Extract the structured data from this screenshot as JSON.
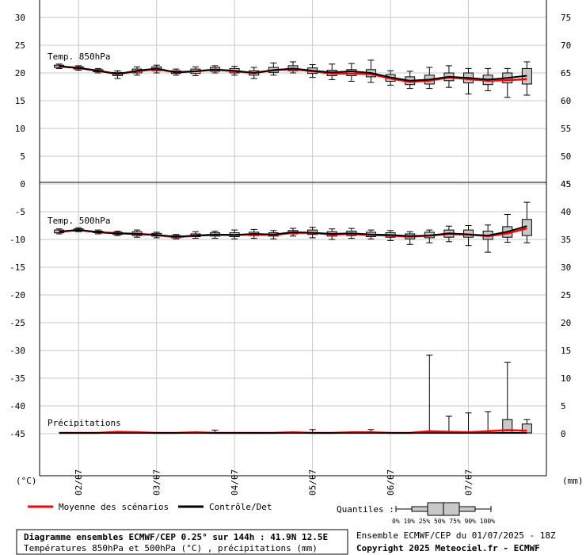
{
  "chart_data": {
    "type": "line",
    "x_dates": [
      "02/07",
      "03/07",
      "04/07",
      "05/07",
      "06/07",
      "07/07"
    ],
    "x_unit_left": "(°C)",
    "x_unit_right": "(mm)",
    "panels": {
      "t850": {
        "label": "Temp. 850hPa",
        "y_left_ticks": [
          "30",
          "25",
          "20",
          "15",
          "10",
          "5",
          "0"
        ],
        "y_right_ticks": [
          "75",
          "70",
          "65",
          "60",
          "55",
          "50",
          "45"
        ],
        "ylim": [
          0,
          33
        ],
        "steps_hours": [
          0,
          6,
          12,
          18,
          24,
          30,
          36,
          42,
          48,
          54,
          60,
          66,
          72,
          78,
          84,
          90,
          96,
          102,
          108,
          114,
          120,
          126,
          132,
          138,
          144
        ],
        "control": [
          21.2,
          20.9,
          20.4,
          19.8,
          20.4,
          20.8,
          20.1,
          20.3,
          20.6,
          20.4,
          20.0,
          20.5,
          20.8,
          20.4,
          20.1,
          20.3,
          20.0,
          19.2,
          18.6,
          18.8,
          19.3,
          19.1,
          18.8,
          19.1,
          19.5
        ],
        "mean": [
          21.2,
          20.9,
          20.4,
          19.8,
          20.3,
          20.7,
          20.1,
          20.3,
          20.6,
          20.3,
          20.0,
          20.5,
          20.7,
          20.3,
          19.9,
          19.9,
          19.8,
          19.0,
          18.4,
          18.6,
          19.2,
          18.9,
          18.6,
          18.7,
          18.9
        ],
        "whisk_lo": [
          20.8,
          20.5,
          20.0,
          19.0,
          19.6,
          20.0,
          19.6,
          19.5,
          20.0,
          19.6,
          19.0,
          19.6,
          20.0,
          19.2,
          18.8,
          18.5,
          18.3,
          17.8,
          17.2,
          17.2,
          17.4,
          16.2,
          16.8,
          15.6,
          16.0
        ],
        "q25": [
          21.0,
          20.7,
          20.2,
          19.5,
          20.0,
          20.4,
          19.9,
          19.9,
          20.3,
          20.0,
          19.6,
          20.1,
          20.4,
          19.9,
          19.5,
          19.5,
          19.3,
          18.5,
          17.9,
          18.0,
          18.6,
          18.2,
          17.9,
          18.2,
          18.0
        ],
        "q75": [
          21.4,
          21.1,
          20.6,
          20.1,
          20.7,
          21.1,
          20.4,
          20.7,
          21.0,
          20.8,
          20.4,
          21.0,
          21.3,
          20.9,
          20.5,
          20.6,
          20.6,
          19.7,
          19.3,
          19.6,
          20.0,
          20.0,
          19.6,
          20.0,
          20.8
        ],
        "whisk_hi": [
          21.6,
          21.3,
          20.8,
          20.4,
          21.1,
          21.4,
          20.7,
          21.1,
          21.3,
          21.2,
          21.0,
          21.8,
          22.0,
          21.5,
          21.6,
          21.7,
          22.3,
          20.4,
          20.3,
          21.0,
          21.3,
          20.8,
          20.8,
          20.8,
          22.0
        ]
      },
      "t500": {
        "label": "Temp. 500hPa",
        "y_left_ticks": [
          "-5",
          "-10",
          "-15",
          "-20",
          "-25",
          "-30",
          "-35",
          "-40",
          "-45"
        ],
        "y_right_ticks": [
          "45",
          "40",
          "35",
          "30",
          "25",
          "20",
          "15",
          "10",
          "5",
          "0"
        ],
        "steps_hours": [
          0,
          6,
          12,
          18,
          24,
          30,
          36,
          42,
          48,
          54,
          60,
          66,
          72,
          78,
          84,
          90,
          96,
          102,
          108,
          114,
          120,
          126,
          132,
          138,
          144
        ],
        "control": [
          -8.6,
          -8.3,
          -8.7,
          -8.9,
          -9.0,
          -9.2,
          -9.5,
          -9.3,
          -9.1,
          -9.2,
          -9.0,
          -9.1,
          -8.7,
          -8.8,
          -9.0,
          -8.9,
          -9.1,
          -9.2,
          -9.4,
          -9.3,
          -8.9,
          -9.1,
          -9.3,
          -8.6,
          -7.6
        ],
        "mean": [
          -8.6,
          -8.3,
          -8.7,
          -8.9,
          -9.0,
          -9.2,
          -9.6,
          -9.3,
          -9.2,
          -9.2,
          -9.1,
          -9.2,
          -8.8,
          -8.8,
          -9.1,
          -9.0,
          -9.2,
          -9.3,
          -9.5,
          -9.3,
          -9.0,
          -9.1,
          -9.4,
          -8.9,
          -8.0
        ],
        "whisk_lo": [
          -9.0,
          -8.6,
          -9.0,
          -9.3,
          -9.6,
          -9.7,
          -9.9,
          -9.8,
          -9.8,
          -9.9,
          -9.8,
          -9.9,
          -9.4,
          -9.7,
          -10.0,
          -9.8,
          -9.9,
          -10.2,
          -10.9,
          -10.6,
          -10.4,
          -11.1,
          -12.3,
          -10.5,
          -10.6
        ],
        "q25": [
          -8.8,
          -8.5,
          -8.8,
          -9.1,
          -9.3,
          -9.4,
          -9.7,
          -9.5,
          -9.4,
          -9.5,
          -9.3,
          -9.4,
          -9.0,
          -9.1,
          -9.4,
          -9.3,
          -9.5,
          -9.6,
          -9.9,
          -9.7,
          -9.6,
          -9.6,
          -10.0,
          -9.6,
          -9.3
        ],
        "q75": [
          -8.3,
          -8.1,
          -8.5,
          -8.7,
          -8.6,
          -8.9,
          -9.3,
          -9.0,
          -8.8,
          -8.8,
          -8.7,
          -8.8,
          -8.4,
          -8.3,
          -8.6,
          -8.5,
          -8.7,
          -8.8,
          -9.0,
          -8.7,
          -8.3,
          -8.3,
          -8.5,
          -7.7,
          -6.4
        ],
        "whisk_hi": [
          -8.1,
          -7.9,
          -8.3,
          -8.5,
          -8.3,
          -8.7,
          -9.1,
          -8.6,
          -8.5,
          -8.3,
          -8.2,
          -8.4,
          -8.0,
          -7.8,
          -8.1,
          -8.0,
          -8.3,
          -8.4,
          -8.6,
          -8.3,
          -7.6,
          -7.5,
          -7.4,
          -5.5,
          -3.3
        ]
      },
      "precip": {
        "label": "Précipitations",
        "steps_hours": [
          0,
          6,
          12,
          18,
          24,
          30,
          36,
          42,
          48,
          54,
          60,
          66,
          72,
          78,
          84,
          90,
          96,
          102,
          108,
          114,
          120,
          126,
          132,
          138,
          144
        ],
        "control": [
          0,
          0,
          0,
          0,
          0,
          0,
          0,
          0,
          0,
          0,
          0,
          0,
          0,
          0,
          0,
          0,
          0,
          0,
          0,
          0,
          0,
          0,
          0,
          0,
          0
        ],
        "mean": [
          0,
          0,
          0,
          0.2,
          0.1,
          0,
          0,
          0.1,
          0,
          0,
          0,
          0,
          0.1,
          0,
          0,
          0.1,
          0.1,
          0,
          0,
          0.3,
          0.2,
          0.1,
          0.3,
          0.5,
          0.4
        ],
        "q75": [
          0,
          0,
          0,
          0,
          0,
          0,
          0,
          0,
          0,
          0,
          0,
          0,
          0,
          0,
          0,
          0,
          0,
          0,
          0,
          0,
          0,
          0,
          0,
          2.4,
          1.6
        ],
        "whisk_hi": [
          0,
          0,
          0,
          0,
          0,
          0,
          0,
          0,
          0.5,
          0,
          0,
          0,
          0,
          0.6,
          0,
          0,
          0.6,
          0,
          0,
          14.0,
          3.0,
          3.6,
          3.8,
          12.7,
          2.4
        ]
      }
    }
  },
  "legend": {
    "mean_label": "Moyenne des scénarios",
    "control_label": "Contrôle/Det",
    "quantiles_label": "Quantiles :",
    "quantiles_ticks": "0%  10% 25% 50% 75% 90% 100%",
    "mean_color": "#ff0000",
    "control_color": "#000000"
  },
  "footer": {
    "title_line1": "Diagramme ensembles ECMWF/CEP 0.25° sur 144h : 41.9N 12.5E",
    "title_line2": "Températures 850hPa et 500hPa (°C) , précipitations (mm)",
    "run_info": "Ensemble ECMWF/CEP du 01/07/2025 - 18Z",
    "copyright": "Copyright 2025 Meteociel.fr - ECMWF"
  }
}
